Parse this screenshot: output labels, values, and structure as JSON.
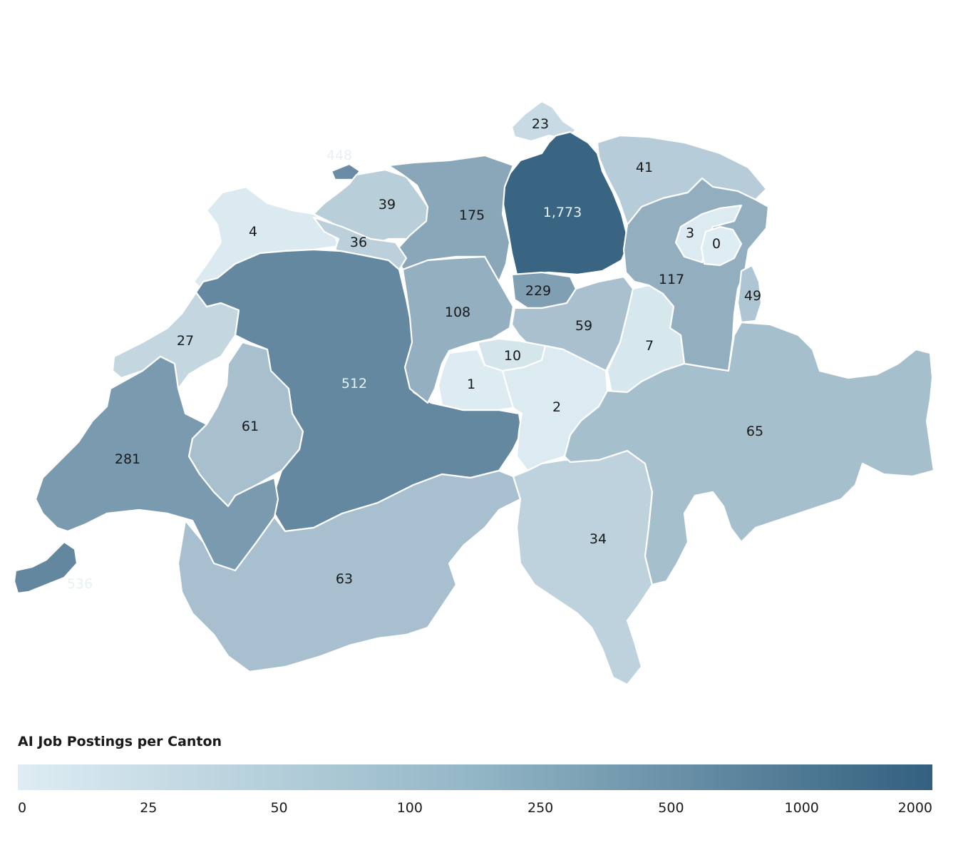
{
  "legend": {
    "title": "AI Job Postings per Canton",
    "ticks": [
      "0",
      "25",
      "50",
      "100",
      "250",
      "500",
      "1000",
      "2000"
    ],
    "tick_values": [
      0,
      25,
      50,
      100,
      250,
      500,
      1000,
      2000
    ],
    "color_low": "#deedf3",
    "color_high": "#33607f"
  },
  "chart_data": {
    "type": "choropleth",
    "region": "Switzerland",
    "title": "AI Job Postings per Canton",
    "scale_breaks": [
      0,
      25,
      50,
      100,
      250,
      500,
      1000,
      2000
    ],
    "cantons": [
      {
        "label": "1,773",
        "value": 1773
      },
      {
        "label": "536",
        "value": 536
      },
      {
        "label": "512",
        "value": 512
      },
      {
        "label": "448",
        "value": 448
      },
      {
        "label": "281",
        "value": 281
      },
      {
        "label": "229",
        "value": 229
      },
      {
        "label": "175",
        "value": 175
      },
      {
        "label": "117",
        "value": 117
      },
      {
        "label": "108",
        "value": 108
      },
      {
        "label": "65",
        "value": 65
      },
      {
        "label": "63",
        "value": 63
      },
      {
        "label": "61",
        "value": 61
      },
      {
        "label": "59",
        "value": 59
      },
      {
        "label": "49",
        "value": 49
      },
      {
        "label": "41",
        "value": 41
      },
      {
        "label": "39",
        "value": 39
      },
      {
        "label": "36",
        "value": 36
      },
      {
        "label": "34",
        "value": 34
      },
      {
        "label": "27",
        "value": 27
      },
      {
        "label": "23",
        "value": 23
      },
      {
        "label": "10",
        "value": 10
      },
      {
        "label": "7",
        "value": 7
      },
      {
        "label": "4",
        "value": 4
      },
      {
        "label": "3",
        "value": 3
      },
      {
        "label": "2",
        "value": 2
      },
      {
        "label": "1",
        "value": 1
      },
      {
        "label": "0",
        "value": 0
      }
    ]
  }
}
